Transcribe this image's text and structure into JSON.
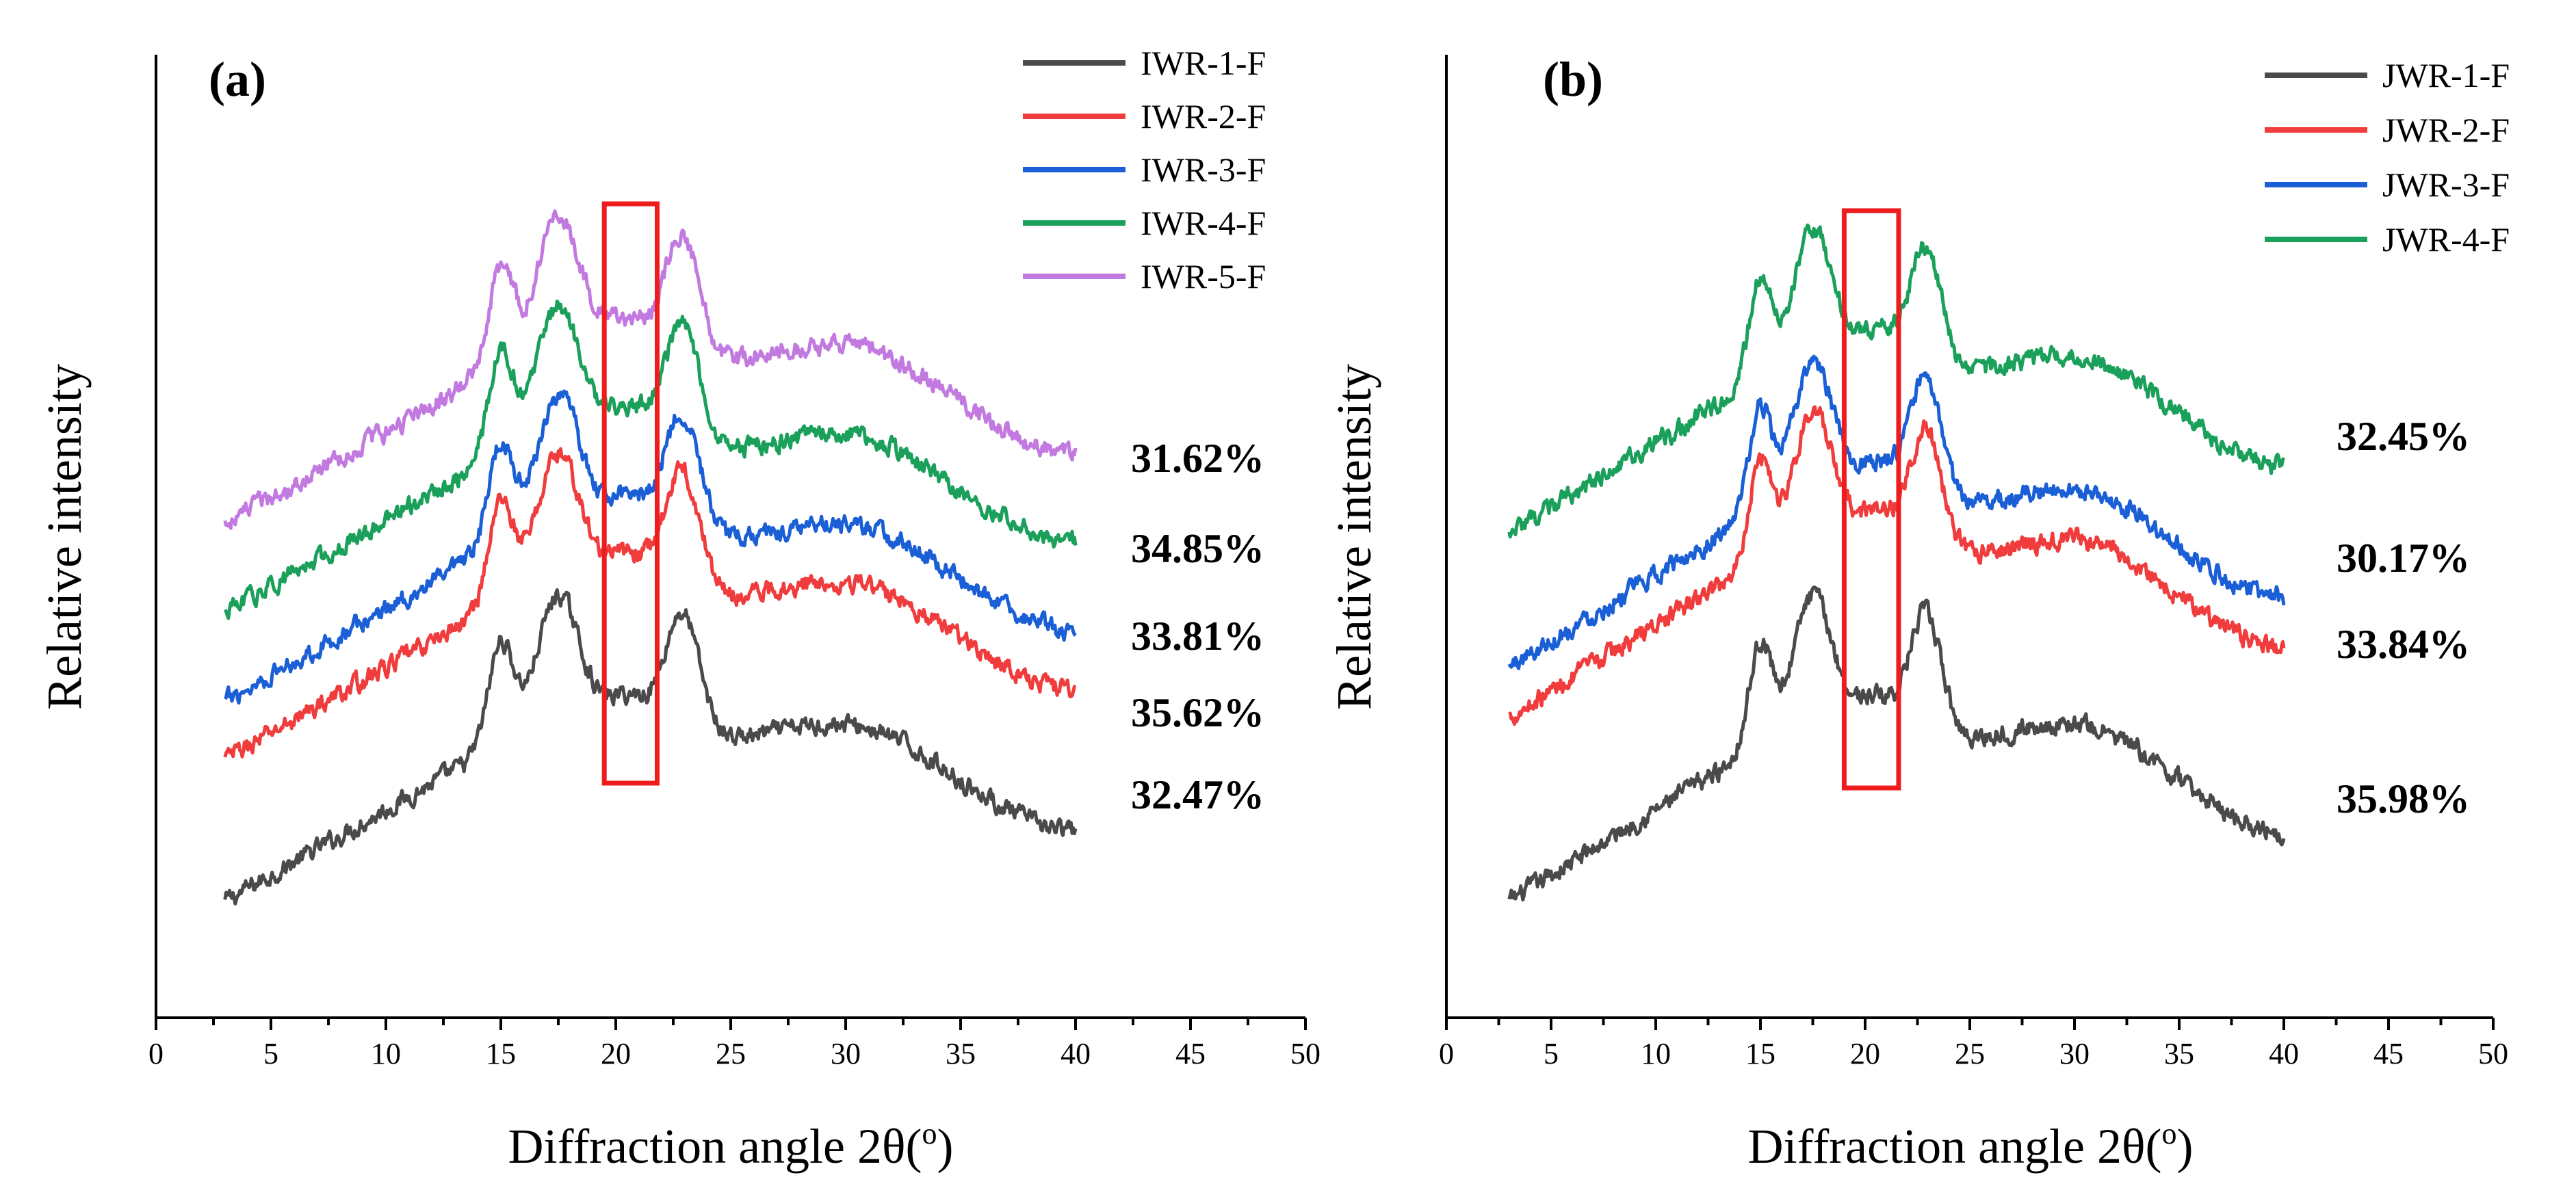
{
  "chart_data": [
    {
      "type": "line",
      "panel_label": "(a)",
      "xlabel": "Diffraction angle 2θ(",
      "xlabel_sup": "o",
      "xlabel_end": ")",
      "ylabel": "Relative intensity",
      "xlim": [
        0,
        50
      ],
      "x_ticks": [
        "0",
        "5",
        "10",
        "15",
        "20",
        "25",
        "30",
        "35",
        "40",
        "45",
        "50"
      ],
      "highlight_x_range": [
        19.5,
        21.8
      ],
      "legend_position": "top-right",
      "series": [
        {
          "name": "IWR-1-F",
          "color": "#4a4a4a",
          "crystallinity": "32.47%",
          "offset": 0
        },
        {
          "name": "IWR-2-F",
          "color": "#f03c3c",
          "crystallinity": "35.62%",
          "offset": 1
        },
        {
          "name": "IWR-3-F",
          "color": "#1a5fd6",
          "crystallinity": "33.81%",
          "offset": 2
        },
        {
          "name": "IWR-4-F",
          "color": "#1aa05a",
          "crystallinity": "34.85%",
          "offset": 3
        },
        {
          "name": "IWR-5-F",
          "color": "#c27ae0",
          "crystallinity": "31.62%",
          "offset": 4
        }
      ]
    },
    {
      "type": "line",
      "panel_label": "(b)",
      "xlabel": "Diffraction angle 2θ(",
      "xlabel_sup": "o",
      "xlabel_end": ")",
      "ylabel": "Relative intensity",
      "xlim": [
        0,
        50
      ],
      "x_ticks": [
        "0",
        "5",
        "10",
        "15",
        "20",
        "25",
        "30",
        "35",
        "40",
        "45",
        "50"
      ],
      "highlight_x_range": [
        19.0,
        21.6
      ],
      "legend_position": "top-right",
      "series": [
        {
          "name": "JWR-1-F",
          "color": "#4a4a4a",
          "crystallinity": "35.98%",
          "offset": 0
        },
        {
          "name": "JWR-2-F",
          "color": "#f03c3c",
          "crystallinity": "33.84%",
          "offset": 1
        },
        {
          "name": "JWR-3-F",
          "color": "#1a5fd6",
          "crystallinity": "30.17%",
          "offset": 2
        },
        {
          "name": "JWR-4-F",
          "color": "#1aa05a",
          "crystallinity": "32.45%",
          "offset": 3
        }
      ]
    }
  ]
}
